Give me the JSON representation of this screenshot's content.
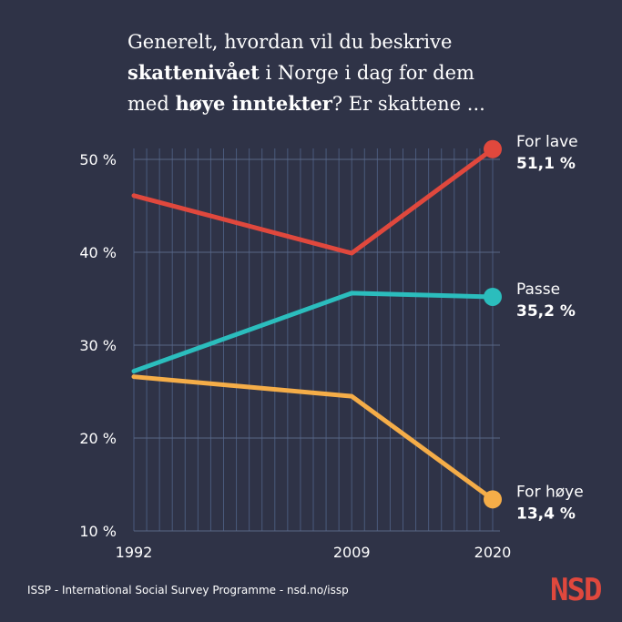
{
  "title": {
    "p1": "Generelt, hvordan vil du beskrive",
    "p2_bold": "skattenivået",
    "p3": " i Norge i dag for dem",
    "p4": "med ",
    "p5_bold": "høye inntekter",
    "p6": "? Er skattene ..."
  },
  "chart_data": {
    "type": "line",
    "x": [
      1992,
      2009,
      2020
    ],
    "x_tick_labels": [
      "1992",
      "2009",
      "2020"
    ],
    "ylim": [
      10,
      50
    ],
    "y_ticks": [
      10,
      20,
      30,
      40,
      50
    ],
    "y_tick_labels": [
      "10 %",
      "20 %",
      "30 %",
      "40 %",
      "50 %"
    ],
    "grid": true,
    "series": [
      {
        "name": "For lave",
        "values": [
          46.1,
          39.9,
          51.1
        ],
        "end_label": "51,1 %",
        "color": "#e0483d"
      },
      {
        "name": "Passe",
        "values": [
          27.2,
          35.6,
          35.2
        ],
        "end_label": "35,2 %",
        "color": "#2bbdbd"
      },
      {
        "name": "For høye",
        "values": [
          26.6,
          24.5,
          13.4
        ],
        "end_label": "13,4 %",
        "color": "#f5ad48"
      }
    ]
  },
  "footer": "ISSP - International Social Survey Programme - nsd.no/issp",
  "logo": "NSD"
}
